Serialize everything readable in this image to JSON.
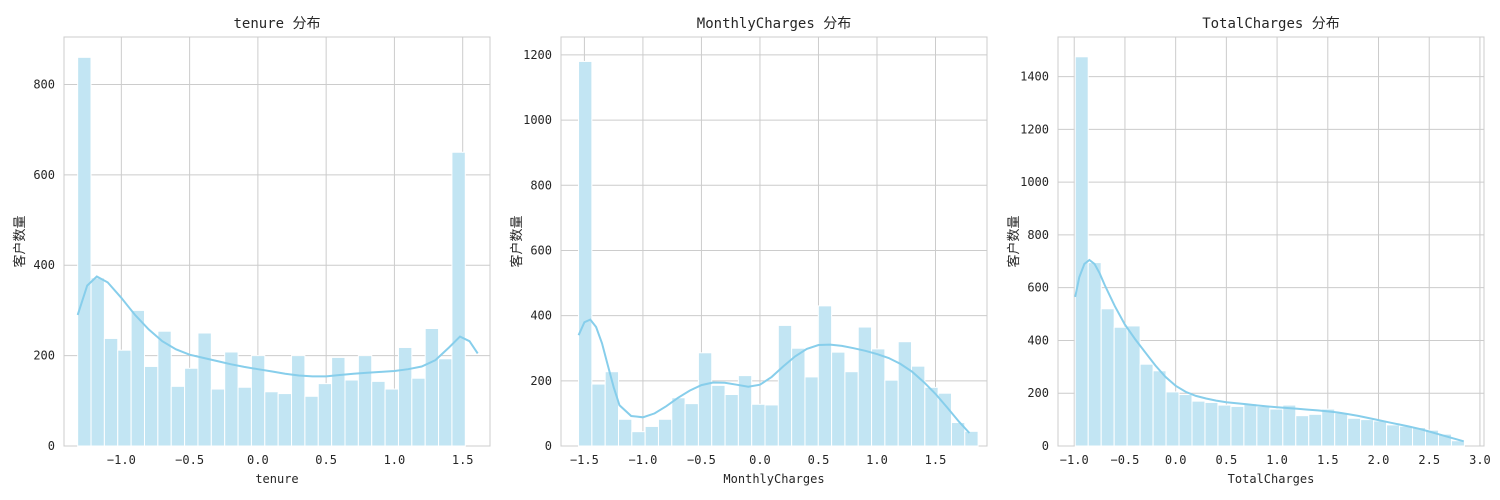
{
  "chart_data": [
    {
      "type": "bar",
      "title": "tenure 分布",
      "xlabel": "tenure",
      "ylabel": "客户数量",
      "bar_color": "#c2e5f3",
      "kde_color": "#87ceeb",
      "xlim": [
        -1.42,
        1.7
      ],
      "ylim": [
        0,
        905
      ],
      "xticks": [
        -1.0,
        -0.5,
        0.0,
        0.5,
        1.0,
        1.5
      ],
      "xtick_labels": [
        "−1.0",
        "−0.5",
        "0.0",
        "0.5",
        "1.0",
        "1.5"
      ],
      "yticks": [
        0,
        200,
        400,
        600,
        800
      ],
      "ytick_labels": [
        "0",
        "200",
        "400",
        "600",
        "800"
      ],
      "bin_start": -1.32,
      "bin_width": 0.0979,
      "counts": [
        860,
        372,
        238,
        212,
        300,
        176,
        254,
        132,
        172,
        250,
        126,
        208,
        130,
        200,
        120,
        116,
        200,
        110,
        138,
        196,
        146,
        200,
        143,
        126,
        218,
        150,
        260,
        193,
        650
      ],
      "kde": {
        "x": [
          -1.32,
          -1.25,
          -1.18,
          -1.1,
          -1.0,
          -0.9,
          -0.8,
          -0.7,
          -0.6,
          -0.5,
          -0.4,
          -0.3,
          -0.2,
          -0.1,
          0.0,
          0.1,
          0.2,
          0.3,
          0.4,
          0.5,
          0.6,
          0.7,
          0.8,
          0.9,
          1.0,
          1.1,
          1.2,
          1.3,
          1.4,
          1.48,
          1.55,
          1.61
        ],
        "y": [
          290,
          355,
          375,
          362,
          328,
          290,
          258,
          232,
          214,
          202,
          195,
          188,
          181,
          175,
          170,
          165,
          160,
          156,
          154,
          154,
          157,
          160,
          162,
          164,
          166,
          170,
          176,
          190,
          218,
          242,
          232,
          205
        ]
      }
    },
    {
      "type": "bar",
      "title": "MonthlyCharges 分布",
      "xlabel": "MonthlyCharges",
      "ylabel": "客户数量",
      "bar_color": "#c2e5f3",
      "kde_color": "#87ceeb",
      "xlim": [
        -1.7,
        1.94
      ],
      "ylim": [
        0,
        1255
      ],
      "xticks": [
        -1.5,
        -1.0,
        -0.5,
        0.0,
        0.5,
        1.0,
        1.5
      ],
      "xtick_labels": [
        "−1.5",
        "−1.0",
        "−0.5",
        "0.0",
        "0.5",
        "1.0",
        "1.5"
      ],
      "yticks": [
        0,
        200,
        400,
        600,
        800,
        1000,
        1200
      ],
      "ytick_labels": [
        "0",
        "200",
        "400",
        "600",
        "800",
        "1000",
        "1200"
      ],
      "bin_start": -1.55,
      "bin_width": 0.1138,
      "counts": [
        1180,
        190,
        228,
        82,
        44,
        60,
        82,
        148,
        130,
        286,
        186,
        158,
        216,
        128,
        126,
        370,
        300,
        212,
        430,
        288,
        228,
        365,
        298,
        202,
        320,
        245,
        180,
        162,
        72,
        45
      ],
      "kde": {
        "x": [
          -1.55,
          -1.5,
          -1.45,
          -1.4,
          -1.35,
          -1.3,
          -1.25,
          -1.2,
          -1.1,
          -1.0,
          -0.9,
          -0.8,
          -0.7,
          -0.6,
          -0.5,
          -0.4,
          -0.3,
          -0.2,
          -0.1,
          0.0,
          0.1,
          0.2,
          0.3,
          0.4,
          0.5,
          0.6,
          0.7,
          0.8,
          0.9,
          1.0,
          1.1,
          1.2,
          1.3,
          1.4,
          1.5,
          1.6,
          1.7,
          1.79
        ],
        "y": [
          340,
          380,
          388,
          365,
          315,
          248,
          180,
          125,
          92,
          88,
          100,
          122,
          148,
          170,
          187,
          195,
          194,
          188,
          182,
          188,
          212,
          245,
          275,
          298,
          310,
          311,
          307,
          300,
          292,
          282,
          270,
          252,
          228,
          196,
          160,
          118,
          75,
          40
        ]
      }
    },
    {
      "type": "bar",
      "title": "TotalCharges 分布",
      "xlabel": "TotalCharges",
      "ylabel": "客户数量",
      "bar_color": "#c2e5f3",
      "kde_color": "#87ceeb",
      "xlim": [
        -1.16,
        3.04
      ],
      "ylim": [
        0,
        1550
      ],
      "xticks": [
        -1.0,
        -0.5,
        0.0,
        0.5,
        1.0,
        1.5,
        2.0,
        2.5,
        3.0
      ],
      "xtick_labels": [
        "−1.0",
        "−0.5",
        "0.0",
        "0.5",
        "1.0",
        "1.5",
        "2.0",
        "2.5",
        "3.0"
      ],
      "yticks": [
        0,
        200,
        400,
        600,
        800,
        1000,
        1200,
        1400
      ],
      "ytick_labels": [
        "0",
        "200",
        "400",
        "600",
        "800",
        "1000",
        "1200",
        "1400"
      ],
      "bin_start": -0.99,
      "bin_width": 0.1279,
      "counts": [
        1475,
        695,
        520,
        450,
        455,
        310,
        285,
        205,
        195,
        170,
        165,
        155,
        150,
        160,
        150,
        140,
        155,
        115,
        120,
        140,
        125,
        105,
        100,
        95,
        80,
        75,
        70,
        60,
        45,
        20
      ],
      "kde": {
        "x": [
          -0.99,
          -0.95,
          -0.9,
          -0.85,
          -0.8,
          -0.75,
          -0.7,
          -0.6,
          -0.5,
          -0.4,
          -0.3,
          -0.2,
          -0.1,
          0.0,
          0.1,
          0.2,
          0.3,
          0.4,
          0.5,
          0.6,
          0.7,
          0.8,
          0.9,
          1.0,
          1.1,
          1.2,
          1.3,
          1.4,
          1.5,
          1.6,
          1.7,
          1.8,
          1.9,
          2.0,
          2.1,
          2.2,
          2.3,
          2.4,
          2.5,
          2.6,
          2.7,
          2.84
        ],
        "y": [
          565,
          640,
          690,
          705,
          690,
          655,
          610,
          530,
          460,
          405,
          355,
          305,
          262,
          228,
          205,
          190,
          180,
          172,
          166,
          162,
          158,
          154,
          150,
          147,
          144,
          141,
          138,
          135,
          131,
          127,
          121,
          114,
          106,
          98,
          90,
          82,
          74,
          65,
          55,
          44,
          33,
          18
        ]
      }
    }
  ]
}
